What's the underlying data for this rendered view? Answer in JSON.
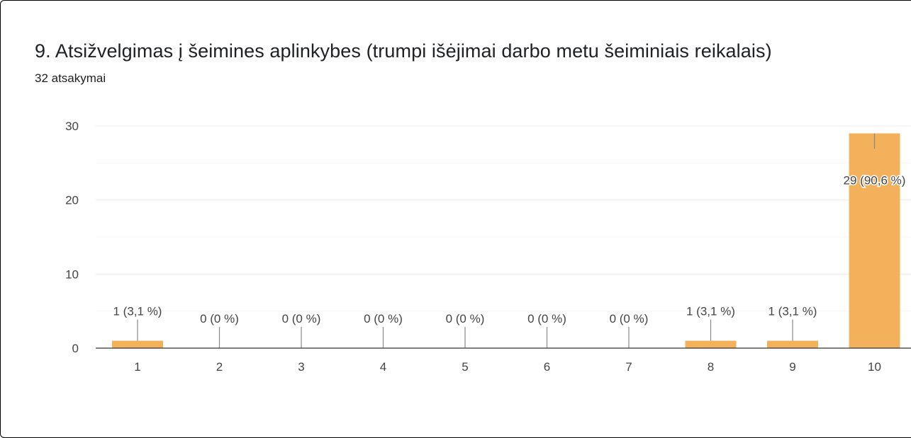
{
  "question": {
    "title": "9. Atsižvelgimas į šeimines aplinkybes (trumpi išėjimai darbo metu šeiminiais reikalais)",
    "response_count": "32 atsakymai"
  },
  "colors": {
    "bar": "#f4b15c",
    "grid": "#ececec",
    "axis": "#333333",
    "leader": "#888888"
  },
  "chart_data": {
    "type": "bar",
    "title": "9. Atsižvelgimas į šeimines aplinkybes (trumpi išėjimai darbo metu šeiminiais reikalais)",
    "categories": [
      "1",
      "2",
      "3",
      "4",
      "5",
      "6",
      "7",
      "8",
      "9",
      "10"
    ],
    "values": [
      1,
      0,
      0,
      0,
      0,
      0,
      0,
      1,
      1,
      29
    ],
    "data_labels": [
      "1 (3,1 %)",
      "0 (0 %)",
      "0 (0 %)",
      "0 (0 %)",
      "0 (0 %)",
      "0 (0 %)",
      "0 (0 %)",
      "1 (3,1 %)",
      "1 (3,1 %)",
      "29 (90,6 %)"
    ],
    "ylim": [
      0,
      30
    ],
    "yticks": [
      0,
      10,
      20,
      30
    ],
    "grid": true,
    "xlabel": "",
    "ylabel": ""
  }
}
